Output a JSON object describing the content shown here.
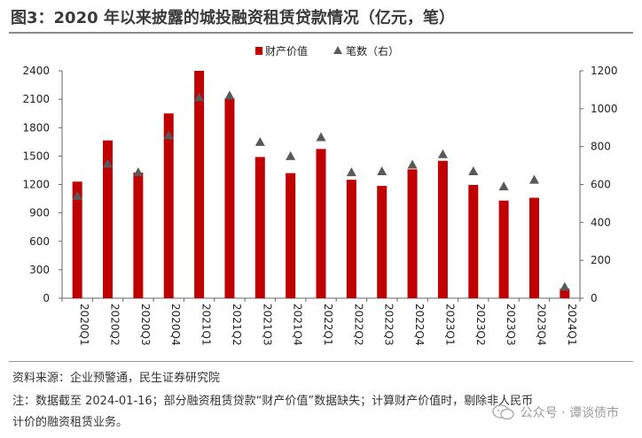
{
  "title": "图3：2020 年以来披露的城投融资租赁贷款情况（亿元，笔）",
  "source": "资料来源：企业预警通，民生证券研究院",
  "note_line1": "注：数据截至 2024-01-16；部分融资租赁贷款“财产价值”数据缺失；计算财产价值时，剔除非人民币",
  "note_line2": "计价的融资租赁业务。",
  "watermark": "公众号 · 谭谈债市",
  "colors": {
    "bar": "#c00000",
    "marker": "#595959",
    "axis": "#666666"
  },
  "chart_data": {
    "type": "bar",
    "categories": [
      "2020Q1",
      "2020Q2",
      "2020Q3",
      "2020Q4",
      "2021Q1",
      "2021Q2",
      "2021Q3",
      "2021Q4",
      "2022Q1",
      "2022Q2",
      "2022Q3",
      "2022Q4",
      "2023Q1",
      "2023Q2",
      "2023Q3",
      "2023Q4",
      "2024Q1"
    ],
    "series": [
      {
        "name": "财产价值",
        "kind": "bar",
        "axis": "left",
        "values": [
          1230,
          1665,
          1325,
          1950,
          2400,
          2110,
          1490,
          1320,
          1575,
          1250,
          1185,
          1360,
          1450,
          1195,
          1030,
          1060,
          100
        ]
      },
      {
        "name": "笔数（右）",
        "kind": "marker",
        "axis": "right",
        "values": [
          540,
          710,
          665,
          860,
          1060,
          1070,
          825,
          750,
          850,
          665,
          670,
          705,
          760,
          670,
          590,
          625,
          60
        ]
      }
    ],
    "ylim_left": [
      0,
      2400
    ],
    "yticks_left": [
      0,
      300,
      600,
      900,
      1200,
      1500,
      1800,
      2100,
      2400
    ],
    "ylim_right": [
      0,
      1200
    ],
    "yticks_right": [
      0,
      200,
      400,
      600,
      800,
      1000,
      1200
    ],
    "legend_position": "top-center",
    "grid": false
  }
}
